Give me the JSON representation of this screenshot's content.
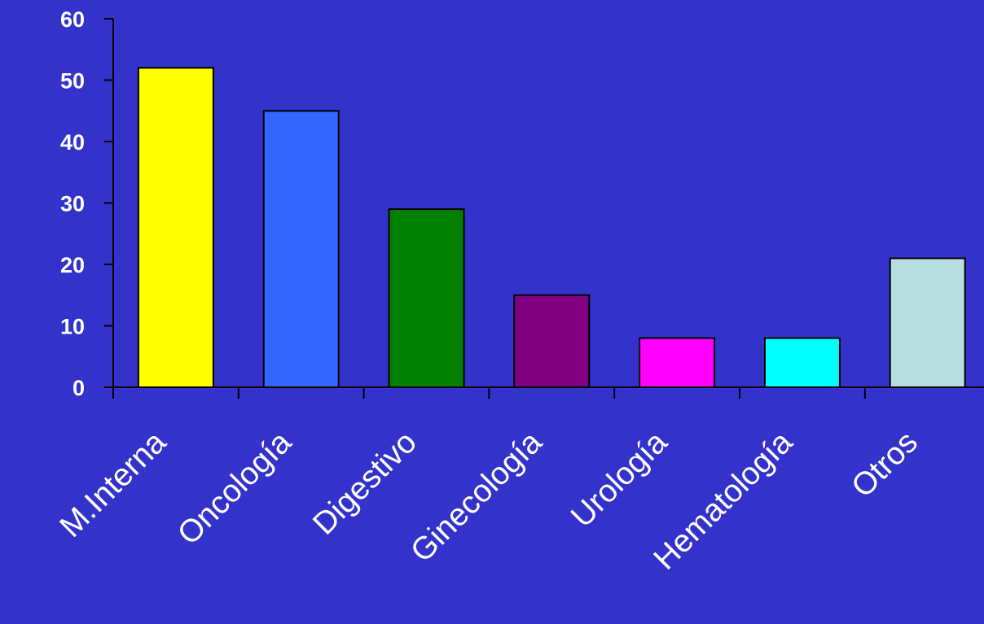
{
  "chart_data": {
    "type": "bar",
    "categories": [
      "M.Interna",
      "Oncología",
      "Digestivo",
      "Ginecología",
      "Urología",
      "Hematología",
      "Otros"
    ],
    "values": [
      52,
      45,
      29,
      15,
      8,
      8,
      21
    ],
    "colors": [
      "#ffff00",
      "#3366ff",
      "#008000",
      "#800080",
      "#ff00ff",
      "#00ffff",
      "#b8dde0"
    ],
    "yticks": [
      0,
      10,
      20,
      30,
      40,
      50,
      60
    ],
    "ylim": [
      0,
      60
    ],
    "title": "",
    "xlabel": "",
    "ylabel": "",
    "grid": false,
    "legend": "none",
    "background": "#3333cc",
    "axis_color": "#000000",
    "text_color": "#ffffff"
  }
}
